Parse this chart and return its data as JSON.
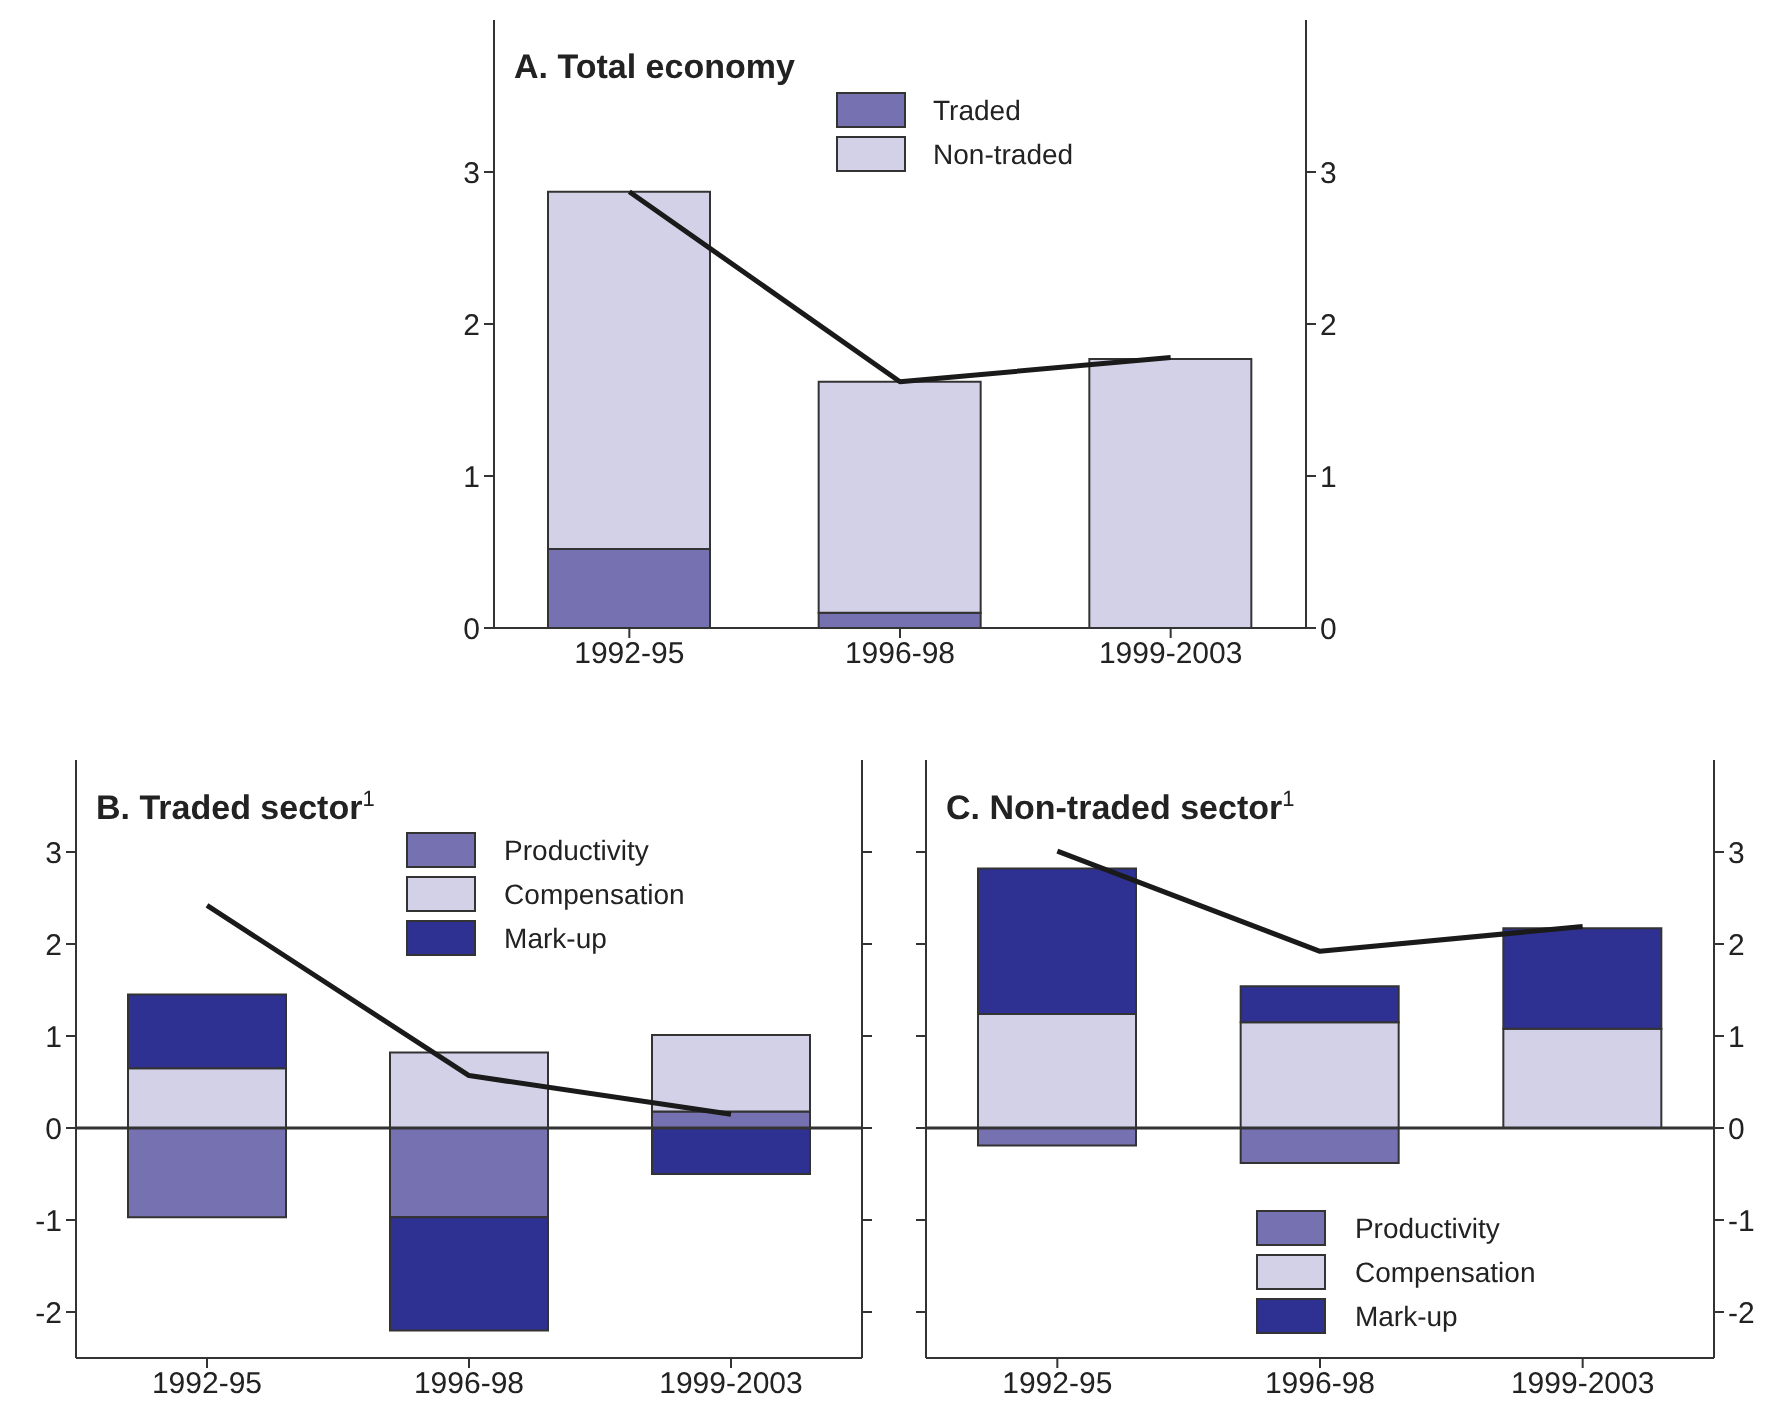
{
  "chart_data": [
    {
      "type": "bar",
      "title": "A. Total economy",
      "stacked": true,
      "categories": [
        "1992-95",
        "1996-98",
        "1999-2003"
      ],
      "legend": "top",
      "marker": "none",
      "grid": false,
      "series": [
        {
          "name": "Traded",
          "color": "#7671b0",
          "values": [
            0.52,
            0.1,
            null
          ]
        },
        {
          "name": "Non-traded",
          "color": "#d3d1e8",
          "values": [
            2.35,
            1.52,
            1.77
          ]
        },
        {
          "type": "line",
          "color": "#1a1a1a",
          "values": [
            2.87,
            1.62,
            1.78
          ]
        }
      ],
      "ylim": [
        0,
        4
      ],
      "yticks": [
        0,
        1,
        2,
        3
      ],
      "y2lim": [
        0,
        4
      ],
      "y2ticks": [
        0,
        1,
        2,
        3
      ]
    },
    {
      "type": "bar",
      "title": "B. Traded sector$^{1}$",
      "stacked": true,
      "categories": [
        "1992-95",
        "1996-98",
        "1999-2003"
      ],
      "legend": "top",
      "marker": "none",
      "grid": false,
      "series": [
        {
          "name": "Productivity",
          "color": "#7671b0",
          "values": [
            -0.97,
            -0.97,
            0.18
          ]
        },
        {
          "name": "Compensation",
          "color": "#d3d1e8",
          "values": [
            0.65,
            0.82,
            0.83
          ]
        },
        {
          "name": "Mark-up",
          "color": "#2e3192",
          "values": [
            0.8,
            -1.23,
            -0.5
          ]
        },
        {
          "type": "line",
          "color": "#1a1a1a",
          "values": [
            2.42,
            0.57,
            0.15
          ]
        }
      ],
      "ylim": [
        -2.5,
        4
      ],
      "yticks": [
        -2,
        -1,
        0,
        1,
        2,
        3
      ],
      "ref_lines": [
        {
          "axis": "y",
          "value": 0,
          "color": "#333333"
        }
      ]
    },
    {
      "type": "bar",
      "title": "C. Non-traded sector$^{1}$",
      "stacked": true,
      "categories": [
        "1992-95",
        "1996-98",
        "1999-2003"
      ],
      "legend": "bottom",
      "marker": "none",
      "grid": false,
      "series": [
        {
          "name": "Productivity",
          "color": "#7671b0",
          "axis": "y2",
          "values": [
            -0.19,
            -0.38,
            null
          ]
        },
        {
          "name": "Compensation",
          "color": "#d3d1e8",
          "axis": "y2",
          "values": [
            1.24,
            1.15,
            1.08
          ]
        },
        {
          "name": "Mark-up",
          "color": "#2e3192",
          "axis": "y2",
          "values": [
            1.58,
            0.39,
            1.09
          ]
        },
        {
          "type": "line",
          "color": "#1a1a1a",
          "axis": "y2",
          "values": [
            3.01,
            1.92,
            2.19
          ]
        }
      ],
      "y2lim": [
        -2.5,
        4
      ],
      "y2ticks": [
        -2,
        -1,
        0,
        1,
        2,
        3
      ],
      "ref_lines": [
        {
          "axis": "y2",
          "value": 0,
          "color": "#333333"
        }
      ]
    }
  ]
}
